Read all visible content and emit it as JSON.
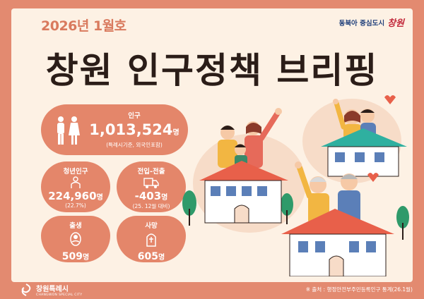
{
  "header": {
    "issue": "2026년 1월호",
    "slogan": "동북아 중심도시",
    "brand": "창원"
  },
  "headline": "창원 인구정책 브리핑",
  "stats": {
    "population": {
      "label": "인구",
      "value": "1,013,524",
      "unit": "명",
      "note": "(특례시기준, 외국인포함)",
      "icon": "man-woman-icon"
    },
    "youth": {
      "label": "청년인구",
      "value": "224,960",
      "unit": "명",
      "note": "(22.7%)",
      "icon": "youth-person-icon"
    },
    "migration": {
      "label": "전입-전출",
      "value": "-403",
      "unit": "명",
      "note": "(25. 12월 대비)",
      "icon": "moving-truck-icon"
    },
    "birth": {
      "label": "출생",
      "value": "509",
      "unit": "명",
      "icon": "baby-icon"
    },
    "death": {
      "label": "사망",
      "value": "605",
      "unit": "명"
    }
  },
  "footer": {
    "logo_text": "창원특례시",
    "logo_sub": "CHANGWON SPECIAL CITY",
    "source": "※ 출처 : 행정안전부주민등록인구 통계(26.1월)"
  },
  "colors": {
    "background": "#e38a70",
    "panel": "#fdf1e4",
    "card": "#e4866a",
    "headline": "#2b1d18",
    "slogan": "#1f3f7a",
    "brand": "#c2283a"
  }
}
